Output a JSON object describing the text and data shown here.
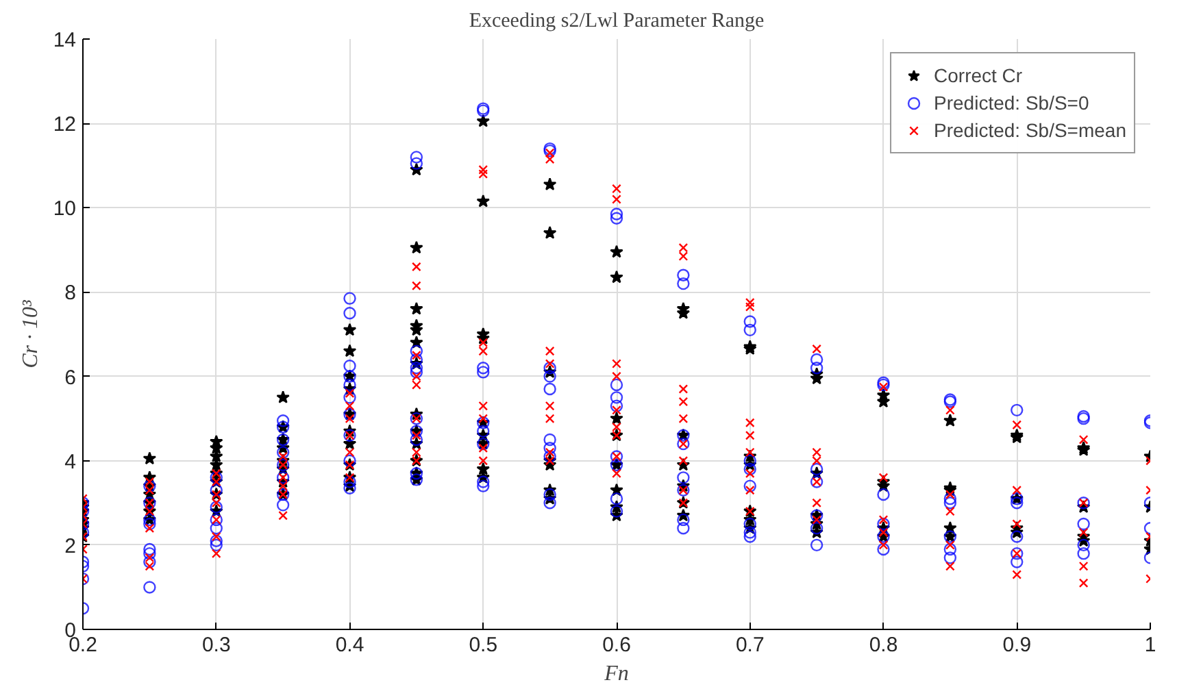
{
  "chart_data": {
    "type": "scatter",
    "title": "Exceeding s2/Lwl Parameter Range",
    "xlabel": "Fn",
    "ylabel": "Cr · 10³",
    "xlim": [
      0.2,
      1.0
    ],
    "ylim": [
      0,
      14
    ],
    "xticks": [
      0.2,
      0.3,
      0.4,
      0.5,
      0.6,
      0.7,
      0.8,
      0.9,
      {
        "value": 1.0,
        "label": "1"
      }
    ],
    "yticks": [
      0,
      2,
      4,
      6,
      8,
      10,
      12,
      14
    ],
    "grid": true,
    "legend": "top right",
    "series": [
      {
        "name": "Correct Cr",
        "color": "#000000",
        "marker": "star",
        "x": [
          0.2,
          0.2,
          0.2,
          0.2,
          0.2,
          0.2,
          0.2,
          0.25,
          0.25,
          0.25,
          0.25,
          0.25,
          0.25,
          0.25,
          0.3,
          0.3,
          0.3,
          0.3,
          0.3,
          0.3,
          0.3,
          0.3,
          0.35,
          0.35,
          0.35,
          0.35,
          0.35,
          0.35,
          0.35,
          0.35,
          0.4,
          0.4,
          0.4,
          0.4,
          0.4,
          0.4,
          0.4,
          0.4,
          0.4,
          0.4,
          0.45,
          0.45,
          0.45,
          0.45,
          0.45,
          0.45,
          0.45,
          0.45,
          0.45,
          0.45,
          0.45,
          0.45,
          0.45,
          0.5,
          0.5,
          0.5,
          0.5,
          0.5,
          0.5,
          0.5,
          0.5,
          0.5,
          0.55,
          0.55,
          0.55,
          0.55,
          0.55,
          0.55,
          0.55,
          0.6,
          0.6,
          0.6,
          0.6,
          0.6,
          0.6,
          0.6,
          0.6,
          0.65,
          0.65,
          0.65,
          0.65,
          0.65,
          0.65,
          0.65,
          0.7,
          0.7,
          0.7,
          0.7,
          0.7,
          0.7,
          0.7,
          0.75,
          0.75,
          0.75,
          0.75,
          0.75,
          0.75,
          0.8,
          0.8,
          0.8,
          0.8,
          0.8,
          0.8,
          0.85,
          0.85,
          0.85,
          0.85,
          0.85,
          0.9,
          0.9,
          0.9,
          0.9,
          0.9,
          0.95,
          0.95,
          0.95,
          0.95,
          0.95,
          1.0,
          1.0,
          1.0,
          1.0
        ],
        "values": [
          2.2,
          2.4,
          2.6,
          2.8,
          3.0,
          2.5,
          2.9,
          4.05,
          3.6,
          3.4,
          3.2,
          3.0,
          2.8,
          2.6,
          4.45,
          4.3,
          4.1,
          3.9,
          3.7,
          3.5,
          3.2,
          2.8,
          5.5,
          4.8,
          4.5,
          4.3,
          4.0,
          3.8,
          3.5,
          3.2,
          7.1,
          6.6,
          6.0,
          5.7,
          5.1,
          4.7,
          4.4,
          3.9,
          3.6,
          3.4,
          10.9,
          9.05,
          7.6,
          7.2,
          7.1,
          6.8,
          6.3,
          5.1,
          4.7,
          4.4,
          4.0,
          3.7,
          3.55,
          12.05,
          10.15,
          7.0,
          6.9,
          4.9,
          4.6,
          4.4,
          3.8,
          3.6,
          10.55,
          9.4,
          6.1,
          4.0,
          3.9,
          3.3,
          3.1,
          8.95,
          8.35,
          5.0,
          4.6,
          3.9,
          3.3,
          2.9,
          2.7,
          7.6,
          7.5,
          4.6,
          3.9,
          3.4,
          3.0,
          2.7,
          6.7,
          6.65,
          4.1,
          3.9,
          2.8,
          2.6,
          2.4,
          6.05,
          5.95,
          3.7,
          2.7,
          2.5,
          2.3,
          5.55,
          5.4,
          3.5,
          3.4,
          2.4,
          2.2,
          4.95,
          3.35,
          3.3,
          2.4,
          2.2,
          4.6,
          4.55,
          3.1,
          2.4,
          2.3,
          4.3,
          4.25,
          2.9,
          2.2,
          2.1,
          4.1,
          2.9,
          2.1,
          1.9
        ]
      },
      {
        "name": "Predicted: Sb/S=0",
        "color": "#0000ff",
        "marker": "circle",
        "x": [
          0.2,
          0.2,
          0.2,
          0.2,
          0.2,
          0.2,
          0.2,
          0.2,
          0.25,
          0.25,
          0.25,
          0.25,
          0.25,
          0.25,
          0.25,
          0.25,
          0.3,
          0.3,
          0.3,
          0.3,
          0.3,
          0.3,
          0.3,
          0.35,
          0.35,
          0.35,
          0.35,
          0.35,
          0.35,
          0.35,
          0.35,
          0.4,
          0.4,
          0.4,
          0.4,
          0.4,
          0.4,
          0.4,
          0.4,
          0.4,
          0.4,
          0.4,
          0.45,
          0.45,
          0.45,
          0.45,
          0.45,
          0.45,
          0.45,
          0.45,
          0.45,
          0.45,
          0.45,
          0.5,
          0.5,
          0.5,
          0.5,
          0.5,
          0.5,
          0.5,
          0.5,
          0.5,
          0.55,
          0.55,
          0.55,
          0.55,
          0.55,
          0.55,
          0.55,
          0.55,
          0.55,
          0.55,
          0.6,
          0.6,
          0.6,
          0.6,
          0.6,
          0.6,
          0.6,
          0.6,
          0.6,
          0.65,
          0.65,
          0.65,
          0.65,
          0.65,
          0.65,
          0.65,
          0.65,
          0.7,
          0.7,
          0.7,
          0.7,
          0.7,
          0.7,
          0.7,
          0.7,
          0.75,
          0.75,
          0.75,
          0.75,
          0.75,
          0.75,
          0.75,
          0.8,
          0.8,
          0.8,
          0.8,
          0.8,
          0.8,
          0.85,
          0.85,
          0.85,
          0.85,
          0.85,
          0.85,
          0.85,
          0.9,
          0.9,
          0.9,
          0.9,
          0.9,
          0.9,
          0.95,
          0.95,
          0.95,
          0.95,
          0.95,
          0.95,
          1.0,
          1.0,
          1.0,
          1.0,
          1.0
        ],
        "values": [
          3.0,
          2.8,
          2.5,
          2.3,
          1.6,
          1.5,
          1.2,
          0.5,
          3.4,
          3.0,
          2.6,
          2.5,
          1.9,
          1.8,
          1.6,
          1.0,
          3.6,
          3.3,
          2.9,
          2.6,
          2.4,
          2.1,
          2.0,
          4.95,
          4.8,
          4.5,
          4.2,
          3.9,
          3.6,
          3.2,
          2.95,
          7.85,
          7.5,
          6.25,
          6.0,
          5.8,
          5.5,
          5.1,
          4.6,
          4.0,
          3.5,
          3.35,
          11.2,
          11.05,
          6.6,
          6.4,
          6.2,
          6.1,
          5.0,
          4.7,
          4.5,
          3.7,
          3.55,
          12.35,
          12.3,
          6.2,
          6.1,
          4.9,
          4.7,
          4.4,
          3.5,
          3.4,
          11.4,
          11.35,
          6.2,
          6.0,
          5.7,
          4.5,
          4.3,
          4.1,
          3.2,
          3.0,
          9.85,
          9.75,
          5.8,
          5.5,
          5.3,
          4.1,
          3.9,
          3.1,
          2.8,
          8.4,
          8.2,
          4.6,
          4.4,
          3.6,
          3.3,
          2.6,
          2.4,
          7.3,
          7.1,
          4.0,
          3.8,
          3.4,
          2.5,
          2.3,
          2.2,
          6.4,
          6.2,
          3.8,
          3.5,
          2.7,
          2.4,
          2.0,
          5.85,
          5.8,
          3.2,
          2.5,
          2.2,
          1.9,
          5.45,
          5.4,
          3.1,
          3.0,
          2.2,
          1.9,
          1.7,
          5.2,
          3.1,
          3.0,
          2.2,
          1.8,
          1.6,
          5.05,
          5.0,
          3.0,
          2.5,
          2.0,
          1.8,
          4.95,
          4.9,
          3.0,
          2.4,
          1.7
        ]
      },
      {
        "name": "Predicted: Sb/S=mean",
        "color": "#ff0000",
        "marker": "cross",
        "x": [
          0.2,
          0.2,
          0.2,
          0.2,
          0.2,
          0.2,
          0.2,
          0.25,
          0.25,
          0.25,
          0.25,
          0.25,
          0.25,
          0.25,
          0.3,
          0.3,
          0.3,
          0.3,
          0.3,
          0.3,
          0.3,
          0.35,
          0.35,
          0.35,
          0.35,
          0.35,
          0.35,
          0.4,
          0.4,
          0.4,
          0.4,
          0.4,
          0.4,
          0.4,
          0.45,
          0.45,
          0.45,
          0.45,
          0.45,
          0.45,
          0.45,
          0.45,
          0.45,
          0.5,
          0.5,
          0.5,
          0.5,
          0.5,
          0.5,
          0.5,
          0.5,
          0.55,
          0.55,
          0.55,
          0.55,
          0.55,
          0.55,
          0.55,
          0.55,
          0.6,
          0.6,
          0.6,
          0.6,
          0.6,
          0.6,
          0.6,
          0.6,
          0.6,
          0.65,
          0.65,
          0.65,
          0.65,
          0.65,
          0.65,
          0.65,
          0.65,
          0.65,
          0.7,
          0.7,
          0.7,
          0.7,
          0.7,
          0.7,
          0.7,
          0.7,
          0.75,
          0.75,
          0.75,
          0.75,
          0.75,
          0.75,
          0.8,
          0.8,
          0.8,
          0.8,
          0.8,
          0.85,
          0.85,
          0.85,
          0.85,
          0.85,
          0.9,
          0.9,
          0.9,
          0.9,
          0.9,
          0.95,
          0.95,
          0.95,
          0.95,
          0.95,
          1.0,
          1.0,
          1.0,
          1.0
        ],
        "values": [
          3.1,
          2.9,
          2.7,
          2.5,
          2.2,
          1.9,
          1.2,
          3.5,
          3.3,
          3.0,
          2.8,
          2.4,
          1.7,
          1.5,
          3.7,
          3.5,
          3.2,
          3.0,
          2.6,
          2.2,
          1.8,
          4.1,
          3.9,
          3.6,
          3.4,
          3.2,
          2.7,
          5.6,
          5.3,
          5.0,
          4.6,
          4.2,
          3.9,
          3.6,
          8.6,
          8.15,
          6.5,
          6.0,
          5.8,
          5.0,
          4.6,
          4.2,
          4.0,
          10.9,
          10.8,
          6.8,
          6.6,
          5.3,
          5.0,
          4.3,
          4.0,
          11.3,
          11.15,
          6.6,
          6.3,
          5.3,
          5.0,
          4.2,
          4.0,
          10.45,
          10.2,
          6.3,
          6.0,
          5.2,
          4.8,
          4.6,
          4.1,
          3.7,
          9.05,
          8.85,
          5.7,
          5.4,
          5.0,
          4.4,
          4.0,
          3.3,
          3.0,
          7.75,
          7.65,
          4.9,
          4.6,
          4.2,
          3.7,
          3.3,
          2.8,
          6.65,
          4.2,
          4.0,
          3.5,
          3.0,
          2.6,
          5.75,
          3.6,
          2.6,
          2.3,
          2.0,
          5.2,
          3.2,
          2.8,
          2.0,
          1.5,
          4.85,
          3.3,
          2.5,
          1.8,
          1.3,
          4.5,
          3.0,
          2.3,
          1.5,
          1.1,
          4.0,
          3.3,
          2.2,
          1.2
        ]
      }
    ]
  }
}
